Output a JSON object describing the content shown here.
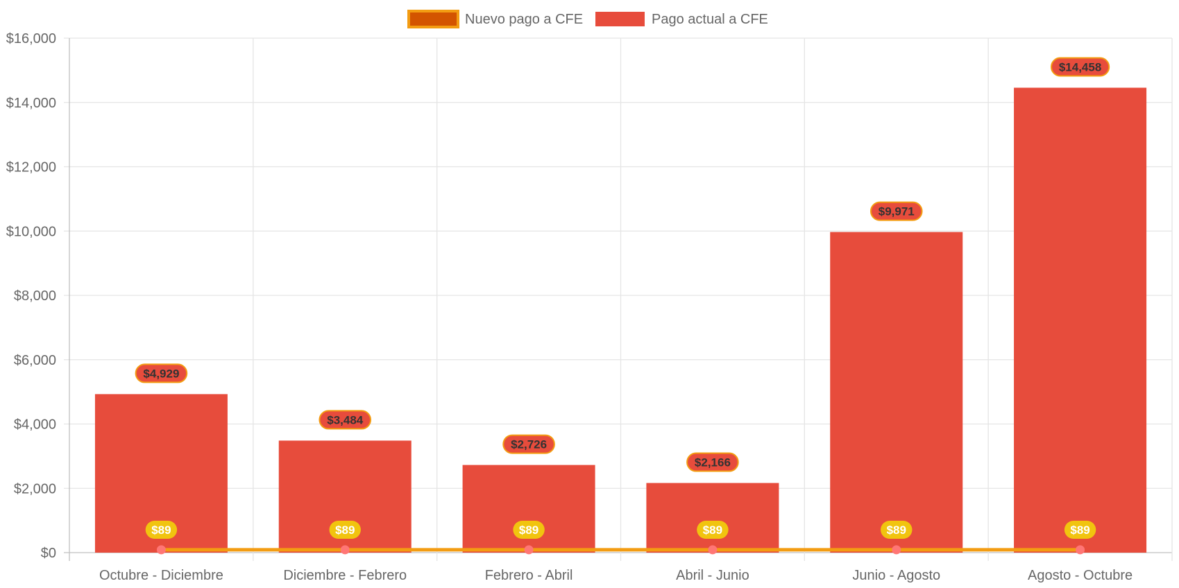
{
  "chart_data": {
    "type": "bar",
    "title": "",
    "xlabel": "",
    "ylabel": "",
    "categories": [
      "Octubre - Diciembre",
      "Diciembre - Febrero",
      "Febrero - Abril",
      "Abril - Junio",
      "Junio - Agosto",
      "Agosto - Octubre"
    ],
    "ylim": [
      0,
      16000
    ],
    "y_ticks": [
      0,
      2000,
      4000,
      6000,
      8000,
      10000,
      12000,
      14000,
      16000
    ],
    "y_tick_labels": [
      "$0",
      "$2,000",
      "$4,000",
      "$6,000",
      "$8,000",
      "$10,000",
      "$12,000",
      "$14,000",
      "$16,000"
    ],
    "grid": true,
    "legend_placement": "top-center",
    "series": [
      {
        "name": "Nuevo pago a CFE",
        "type": "line",
        "values": [
          89,
          89,
          89,
          89,
          89,
          89
        ],
        "labels": [
          "$89",
          "$89",
          "$89",
          "$89",
          "$89",
          "$89"
        ],
        "color": "#f39c12",
        "point_color": "#ff7675",
        "legend_fill": "#d35400",
        "label_bg": "#f1c40f"
      },
      {
        "name": "Pago actual a CFE",
        "type": "bar",
        "values": [
          4929,
          3484,
          2726,
          2166,
          9971,
          14458
        ],
        "labels": [
          "$4,929",
          "$3,484",
          "$2,726",
          "$2,166",
          "$9,971",
          "$14,458"
        ],
        "color": "#e74c3c",
        "label_border": "#f39c12"
      }
    ]
  }
}
